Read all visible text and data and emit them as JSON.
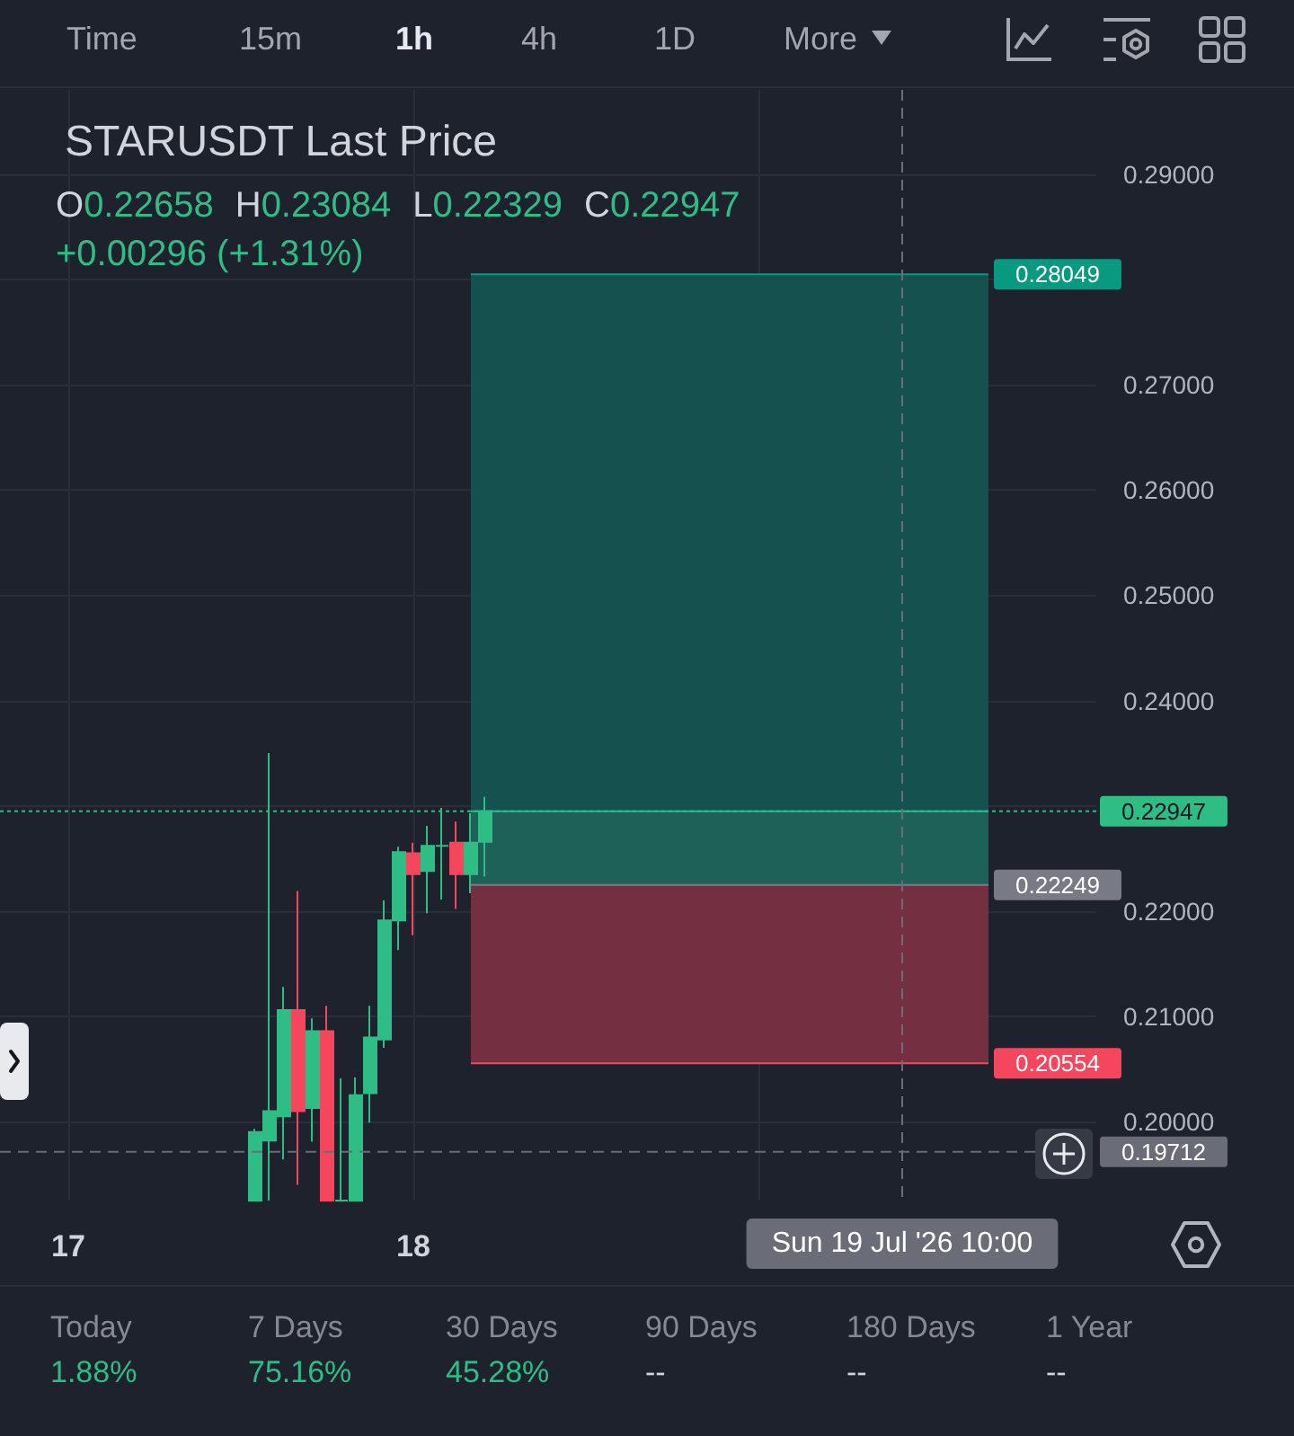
{
  "chart_data": {
    "type": "candlestick",
    "title": "STARUSDT Last Price",
    "annotations": [
      "Time",
      "15m",
      "1h",
      "4h",
      "1D",
      "More",
      "O0.22658",
      "H0.23084",
      "L0.22329",
      "C0.22947",
      "+0.00296 (+1.31%)",
      "Today",
      "1.88%",
      "7 Days",
      "75.16%",
      "30 Days",
      "45.28%",
      "90 Days",
      "--",
      "180 Days",
      "--",
      "1 Year",
      "--"
    ],
    "x": [
      "2026-07-17T13:00",
      "2026-07-17T14:00",
      "2026-07-17T15:00",
      "2026-07-17T16:00",
      "2026-07-17T17:00",
      "2026-07-17T18:00",
      "2026-07-17T19:00",
      "2026-07-17T20:00",
      "2026-07-17T21:00",
      "2026-07-17T22:00",
      "2026-07-17T23:00",
      "2026-07-18T00:00",
      "2026-07-18T01:00",
      "2026-07-18T02:00",
      "2026-07-18T03:00",
      "2026-07-18T04:00",
      "2026-07-18T05:00"
    ],
    "ohlc": [
      [
        0.1925,
        0.1993,
        0.1925,
        0.199
      ],
      [
        0.1982,
        0.235,
        0.1925,
        0.201
      ],
      [
        0.2005,
        0.2128,
        0.1964,
        0.2106
      ],
      [
        0.2106,
        0.2219,
        0.194,
        0.201
      ],
      [
        0.2013,
        0.2098,
        0.1981,
        0.2086
      ],
      [
        0.2086,
        0.211,
        0.1925,
        0.1925
      ],
      [
        0.1925,
        0.2041,
        0.1925,
        0.1925
      ],
      [
        0.1925,
        0.2042,
        0.1925,
        0.2025
      ],
      [
        0.2027,
        0.211,
        0.1999,
        0.208
      ],
      [
        0.2078,
        0.221,
        0.207,
        0.2191
      ],
      [
        0.2191,
        0.2261,
        0.2163,
        0.2256
      ],
      [
        0.2255,
        0.2265,
        0.2177,
        0.2235
      ],
      [
        0.2238,
        0.2281,
        0.2198,
        0.2262
      ],
      [
        0.2262,
        0.2298,
        0.2211,
        0.2262
      ],
      [
        0.2265,
        0.2285,
        0.2202,
        0.2235
      ],
      [
        0.2235,
        0.2293,
        0.2217,
        0.2265
      ],
      [
        0.22658,
        0.23084,
        0.22329,
        0.22947
      ]
    ],
    "colors": [
      "#2ebd85",
      "#2ebd85",
      "#2ebd85",
      "#f6465d",
      "#2ebd85",
      "#f6465d",
      "#2ebd85",
      "#2ebd85",
      "#2ebd85",
      "#2ebd85",
      "#2ebd85",
      "#f6465d",
      "#2ebd85",
      "#2ebd85",
      "#f6465d",
      "#2ebd85",
      "#2ebd85"
    ],
    "series": [
      {
        "type": "line",
        "x": [
          "2026-07-18T04:00",
          "2026-07-19T16:00"
        ],
        "values": [
          0.28049,
          0.28049
        ],
        "lower": [
          0.22249,
          0.22249
        ],
        "upper": [
          0.28049,
          0.28049
        ],
        "color": "#089981",
        "value_labels": [
          null,
          "0.28049"
        ]
      },
      {
        "type": "line",
        "x": [
          "2026-07-18T04:00",
          "2026-07-19T16:00"
        ],
        "values": [
          0.22947,
          0.22947
        ],
        "lower": [
          0.22249,
          0.22249
        ],
        "upper": [
          0.22947,
          0.22947
        ],
        "color": "#1fbf9c"
      },
      {
        "type": "line",
        "x": [
          "2026-07-18T04:00",
          "2026-07-19T16:00"
        ],
        "values": [
          0.22249,
          0.22249
        ],
        "color": "#787b86",
        "value_labels": [
          null,
          "0.22249"
        ]
      },
      {
        "type": "line",
        "x": [
          "2026-07-18T04:00",
          "2026-07-19T16:00"
        ],
        "values": [
          0.20554,
          0.20554
        ],
        "lower": [
          0.20554,
          0.20554
        ],
        "upper": [
          0.22249,
          0.22249
        ],
        "color": "#f6465d",
        "value_labels": [
          null,
          "0.20554"
        ]
      }
    ],
    "xlim": [
      "2026-07-16T19:15",
      "2026-07-19T23:30"
    ],
    "xticks": [
      {
        "value": "2026-07-17",
        "label": "17"
      },
      {
        "value": "2026-07-18",
        "label": "18"
      },
      {
        "value": "2026-07-19",
        "label": null
      }
    ],
    "ylim": [
      0.1925,
      0.298
    ],
    "yticks": [
      {
        "value": 0.2,
        "label": "0.20000"
      },
      {
        "value": 0.21,
        "label": "0.21000"
      },
      {
        "value": 0.22,
        "label": "0.22000"
      },
      {
        "value": 0.23,
        "label": null
      },
      {
        "value": 0.24,
        "label": "0.24000"
      },
      {
        "value": 0.25,
        "label": "0.25000"
      },
      {
        "value": 0.26,
        "label": "0.26000"
      },
      {
        "value": 0.27,
        "label": "0.27000"
      },
      {
        "value": 0.28,
        "label": null
      },
      {
        "value": 0.29,
        "label": "0.29000"
      }
    ],
    "grid": true,
    "ref_lines": [
      {
        "axis": "y",
        "value": 0.22947,
        "label": "0.22947",
        "color": "#2ebd85",
        "line_style": "dotted"
      },
      {
        "axis": "y",
        "value": 0.19712,
        "label": "0.19712",
        "color": "#6a6d78",
        "line_style": "dashed"
      },
      {
        "axis": "x",
        "value": "2026-07-19T10:00",
        "label": "Sun 19 Jul '26 10:00",
        "color": "#6a6d78",
        "line_style": "dashed"
      }
    ]
  }
}
